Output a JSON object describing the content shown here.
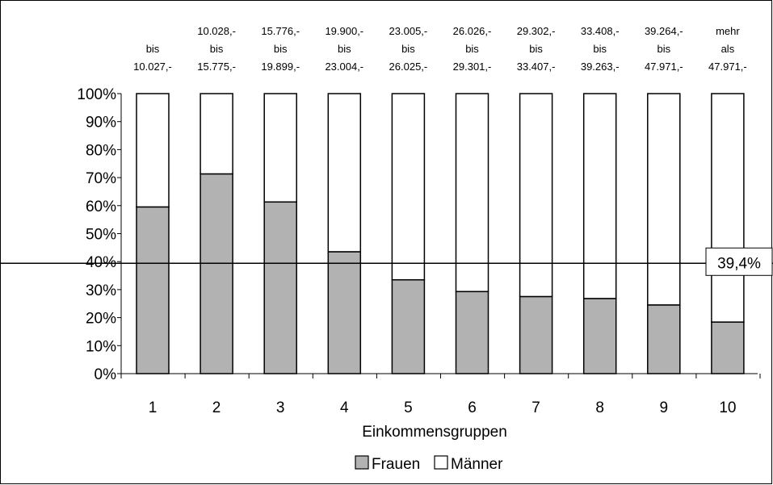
{
  "chart_data": {
    "type": "bar",
    "stacked": true,
    "percent_stacked": true,
    "title": "",
    "xlabel": "Einkommensgruppen",
    "ylabel": "",
    "ylim": [
      0,
      100
    ],
    "y_ticks": [
      "0%",
      "10%",
      "20%",
      "30%",
      "40%",
      "50%",
      "60%",
      "70%",
      "80%",
      "90%",
      "100%"
    ],
    "y_tick_values": [
      0,
      10,
      20,
      30,
      40,
      50,
      60,
      70,
      80,
      90,
      100
    ],
    "categories": [
      "1",
      "2",
      "3",
      "4",
      "5",
      "6",
      "7",
      "8",
      "9",
      "10"
    ],
    "range_labels": [
      [
        "",
        "bis",
        "10.027,-"
      ],
      [
        "10.028,-",
        "bis",
        "15.775,-"
      ],
      [
        "15.776,-",
        "bis",
        "19.899,-"
      ],
      [
        "19.900,-",
        "bis",
        "23.004,-"
      ],
      [
        "23.005,-",
        "bis",
        "26.025,-"
      ],
      [
        "26.026,-",
        "bis",
        "29.301,-"
      ],
      [
        "29.302,-",
        "bis",
        "33.407,-"
      ],
      [
        "33.408,-",
        "bis",
        "39.263,-"
      ],
      [
        "39.264,-",
        "bis",
        "47.971,-"
      ],
      [
        "mehr",
        "als",
        "47.971,-"
      ]
    ],
    "series": [
      {
        "name": "Frauen",
        "color": "#b2b2b2",
        "values": [
          59.5,
          71.3,
          61.3,
          43.5,
          33.5,
          29.3,
          27.5,
          26.8,
          24.5,
          18.4
        ]
      },
      {
        "name": "Männer",
        "color": "#ffffff",
        "values": [
          40.5,
          28.7,
          38.7,
          56.5,
          66.5,
          70.7,
          72.5,
          73.2,
          75.5,
          81.6
        ]
      }
    ],
    "reference_line": {
      "value": 39.4,
      "label": "39,4%"
    },
    "grid": false,
    "legend_position": "bottom"
  }
}
